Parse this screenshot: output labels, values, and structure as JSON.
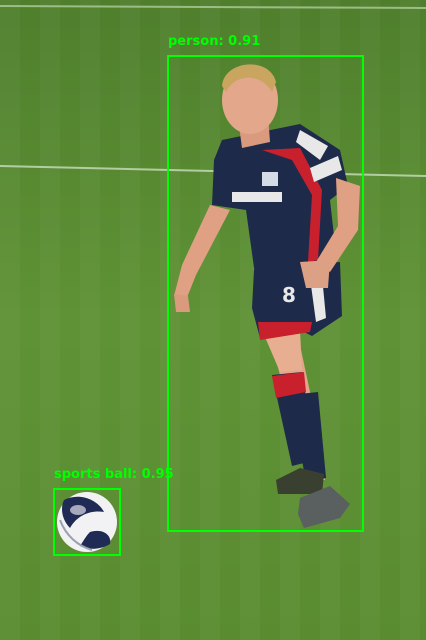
{
  "detections": [
    {
      "label": "person: 0.91"
    },
    {
      "label": "sports ball: 0.95"
    }
  ],
  "colors": {
    "box": "#00ff00",
    "grass": "#5a8a32",
    "kit_navy": "#1e2a4a",
    "kit_red": "#c8202c"
  }
}
